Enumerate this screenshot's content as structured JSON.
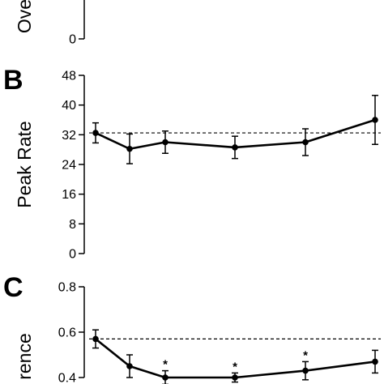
{
  "chart_data": [
    {
      "type": "line",
      "panel_letter": "",
      "ylabel": "Ove",
      "yticks": [
        0
      ],
      "ylim": [
        0,
        4
      ],
      "x": [],
      "values": [],
      "errors": [],
      "significant": [],
      "reference": null
    },
    {
      "type": "line",
      "panel_letter": "B",
      "ylabel": "Peak Rate",
      "yticks": [
        0,
        8,
        16,
        24,
        32,
        40,
        48
      ],
      "ylim": [
        0,
        48
      ],
      "x": [
        1,
        2,
        3,
        4,
        5,
        6
      ],
      "values": [
        32.5,
        28.2,
        30.0,
        28.6,
        30.0,
        36.0
      ],
      "errors": [
        2.7,
        4.0,
        3.0,
        3.0,
        3.6,
        6.6
      ],
      "significant": [
        false,
        false,
        false,
        false,
        false,
        false
      ],
      "reference": 32.5
    },
    {
      "type": "line",
      "panel_letter": "C",
      "ylabel": "rence",
      "yticks": [
        0.4,
        0.6,
        0.8
      ],
      "ylim": [
        0.4,
        0.8
      ],
      "x": [
        1,
        2,
        3,
        4,
        5,
        6
      ],
      "values": [
        0.57,
        0.45,
        0.4,
        0.4,
        0.43,
        0.47
      ],
      "errors": [
        0.04,
        0.05,
        0.03,
        0.02,
        0.04,
        0.05
      ],
      "significant": [
        false,
        false,
        true,
        true,
        true,
        false
      ],
      "reference": 0.57,
      "annotation_symbol": "*"
    }
  ]
}
